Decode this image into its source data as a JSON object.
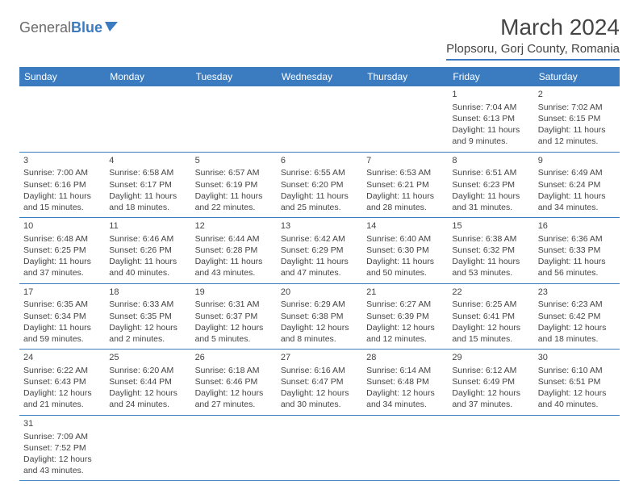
{
  "logo": {
    "part1": "General",
    "part2": "Blue"
  },
  "title": "March 2024",
  "location": "Plopsoru, Gorj County, Romania",
  "header_bg": "#3b7bbf",
  "weekdays": [
    "Sunday",
    "Monday",
    "Tuesday",
    "Wednesday",
    "Thursday",
    "Friday",
    "Saturday"
  ],
  "weeks": [
    [
      null,
      null,
      null,
      null,
      null,
      {
        "num": "1",
        "sunrise": "Sunrise: 7:04 AM",
        "sunset": "Sunset: 6:13 PM",
        "daylight": "Daylight: 11 hours and 9 minutes."
      },
      {
        "num": "2",
        "sunrise": "Sunrise: 7:02 AM",
        "sunset": "Sunset: 6:15 PM",
        "daylight": "Daylight: 11 hours and 12 minutes."
      }
    ],
    [
      {
        "num": "3",
        "sunrise": "Sunrise: 7:00 AM",
        "sunset": "Sunset: 6:16 PM",
        "daylight": "Daylight: 11 hours and 15 minutes."
      },
      {
        "num": "4",
        "sunrise": "Sunrise: 6:58 AM",
        "sunset": "Sunset: 6:17 PM",
        "daylight": "Daylight: 11 hours and 18 minutes."
      },
      {
        "num": "5",
        "sunrise": "Sunrise: 6:57 AM",
        "sunset": "Sunset: 6:19 PM",
        "daylight": "Daylight: 11 hours and 22 minutes."
      },
      {
        "num": "6",
        "sunrise": "Sunrise: 6:55 AM",
        "sunset": "Sunset: 6:20 PM",
        "daylight": "Daylight: 11 hours and 25 minutes."
      },
      {
        "num": "7",
        "sunrise": "Sunrise: 6:53 AM",
        "sunset": "Sunset: 6:21 PM",
        "daylight": "Daylight: 11 hours and 28 minutes."
      },
      {
        "num": "8",
        "sunrise": "Sunrise: 6:51 AM",
        "sunset": "Sunset: 6:23 PM",
        "daylight": "Daylight: 11 hours and 31 minutes."
      },
      {
        "num": "9",
        "sunrise": "Sunrise: 6:49 AM",
        "sunset": "Sunset: 6:24 PM",
        "daylight": "Daylight: 11 hours and 34 minutes."
      }
    ],
    [
      {
        "num": "10",
        "sunrise": "Sunrise: 6:48 AM",
        "sunset": "Sunset: 6:25 PM",
        "daylight": "Daylight: 11 hours and 37 minutes."
      },
      {
        "num": "11",
        "sunrise": "Sunrise: 6:46 AM",
        "sunset": "Sunset: 6:26 PM",
        "daylight": "Daylight: 11 hours and 40 minutes."
      },
      {
        "num": "12",
        "sunrise": "Sunrise: 6:44 AM",
        "sunset": "Sunset: 6:28 PM",
        "daylight": "Daylight: 11 hours and 43 minutes."
      },
      {
        "num": "13",
        "sunrise": "Sunrise: 6:42 AM",
        "sunset": "Sunset: 6:29 PM",
        "daylight": "Daylight: 11 hours and 47 minutes."
      },
      {
        "num": "14",
        "sunrise": "Sunrise: 6:40 AM",
        "sunset": "Sunset: 6:30 PM",
        "daylight": "Daylight: 11 hours and 50 minutes."
      },
      {
        "num": "15",
        "sunrise": "Sunrise: 6:38 AM",
        "sunset": "Sunset: 6:32 PM",
        "daylight": "Daylight: 11 hours and 53 minutes."
      },
      {
        "num": "16",
        "sunrise": "Sunrise: 6:36 AM",
        "sunset": "Sunset: 6:33 PM",
        "daylight": "Daylight: 11 hours and 56 minutes."
      }
    ],
    [
      {
        "num": "17",
        "sunrise": "Sunrise: 6:35 AM",
        "sunset": "Sunset: 6:34 PM",
        "daylight": "Daylight: 11 hours and 59 minutes."
      },
      {
        "num": "18",
        "sunrise": "Sunrise: 6:33 AM",
        "sunset": "Sunset: 6:35 PM",
        "daylight": "Daylight: 12 hours and 2 minutes."
      },
      {
        "num": "19",
        "sunrise": "Sunrise: 6:31 AM",
        "sunset": "Sunset: 6:37 PM",
        "daylight": "Daylight: 12 hours and 5 minutes."
      },
      {
        "num": "20",
        "sunrise": "Sunrise: 6:29 AM",
        "sunset": "Sunset: 6:38 PM",
        "daylight": "Daylight: 12 hours and 8 minutes."
      },
      {
        "num": "21",
        "sunrise": "Sunrise: 6:27 AM",
        "sunset": "Sunset: 6:39 PM",
        "daylight": "Daylight: 12 hours and 12 minutes."
      },
      {
        "num": "22",
        "sunrise": "Sunrise: 6:25 AM",
        "sunset": "Sunset: 6:41 PM",
        "daylight": "Daylight: 12 hours and 15 minutes."
      },
      {
        "num": "23",
        "sunrise": "Sunrise: 6:23 AM",
        "sunset": "Sunset: 6:42 PM",
        "daylight": "Daylight: 12 hours and 18 minutes."
      }
    ],
    [
      {
        "num": "24",
        "sunrise": "Sunrise: 6:22 AM",
        "sunset": "Sunset: 6:43 PM",
        "daylight": "Daylight: 12 hours and 21 minutes."
      },
      {
        "num": "25",
        "sunrise": "Sunrise: 6:20 AM",
        "sunset": "Sunset: 6:44 PM",
        "daylight": "Daylight: 12 hours and 24 minutes."
      },
      {
        "num": "26",
        "sunrise": "Sunrise: 6:18 AM",
        "sunset": "Sunset: 6:46 PM",
        "daylight": "Daylight: 12 hours and 27 minutes."
      },
      {
        "num": "27",
        "sunrise": "Sunrise: 6:16 AM",
        "sunset": "Sunset: 6:47 PM",
        "daylight": "Daylight: 12 hours and 30 minutes."
      },
      {
        "num": "28",
        "sunrise": "Sunrise: 6:14 AM",
        "sunset": "Sunset: 6:48 PM",
        "daylight": "Daylight: 12 hours and 34 minutes."
      },
      {
        "num": "29",
        "sunrise": "Sunrise: 6:12 AM",
        "sunset": "Sunset: 6:49 PM",
        "daylight": "Daylight: 12 hours and 37 minutes."
      },
      {
        "num": "30",
        "sunrise": "Sunrise: 6:10 AM",
        "sunset": "Sunset: 6:51 PM",
        "daylight": "Daylight: 12 hours and 40 minutes."
      }
    ],
    [
      {
        "num": "31",
        "sunrise": "Sunrise: 7:09 AM",
        "sunset": "Sunset: 7:52 PM",
        "daylight": "Daylight: 12 hours and 43 minutes."
      },
      null,
      null,
      null,
      null,
      null,
      null
    ]
  ]
}
